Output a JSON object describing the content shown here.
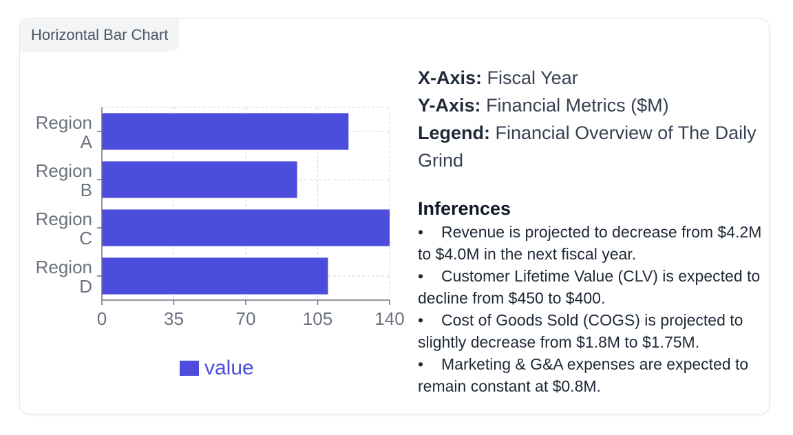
{
  "card": {
    "tag_label": "Horizontal Bar Chart"
  },
  "meta": {
    "x_key": "X-Axis:",
    "x_value": "Fiscal Year",
    "y_key": "Y-Axis:",
    "y_value": "Financial Metrics ($M)",
    "legend_key": "Legend:",
    "legend_value": "Financial Overview of The Daily Grind"
  },
  "inferences": {
    "title": "Inferences",
    "items": [
      "Revenue is projected to decrease from $4.2M to $4.0M in the next fiscal year.",
      "Customer Lifetime Value (CLV) is expected to decline from $450 to $400.",
      "Cost of Goods Sold (COGS) is projected to slightly decrease from $1.8M to $1.75M.",
      "Marketing & G&A expenses are expected to remain constant at $0.8M."
    ]
  },
  "chart_data": {
    "type": "bar",
    "orientation": "horizontal",
    "categories": [
      "Region A",
      "Region B",
      "Region C",
      "Region D"
    ],
    "series": [
      {
        "name": "value",
        "values": [
          120,
          95,
          140,
          110
        ]
      }
    ],
    "xlim": [
      0,
      140
    ],
    "xticks": [
      0,
      35,
      70,
      105,
      140
    ],
    "grid": true,
    "legend": "bottom",
    "colors": {
      "bar": "#4c4ddc",
      "legend_text": "#4c4ddc",
      "grid": "#d1d5db",
      "axis": "#6b7280"
    }
  }
}
